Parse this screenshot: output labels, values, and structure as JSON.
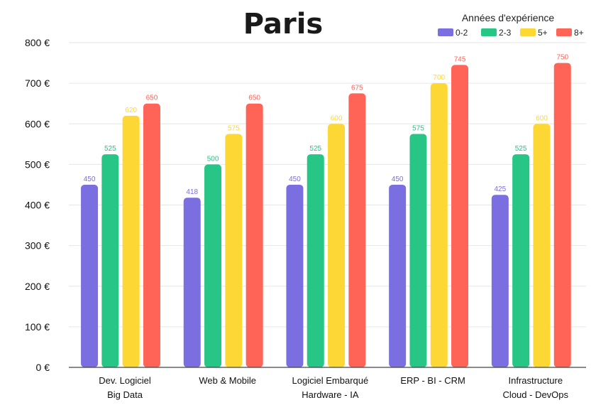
{
  "chart_data": {
    "type": "bar",
    "title": "Paris",
    "legend_title": "Années d'expérience",
    "legend_position": "top-right",
    "grid": true,
    "y_tick_suffix": " €",
    "ylim": [
      0,
      800
    ],
    "yticks": [
      0,
      100,
      200,
      300,
      400,
      500,
      600,
      700,
      800
    ],
    "categories": [
      [
        "Dev. Logiciel",
        "Big Data"
      ],
      [
        "Web & Mobile"
      ],
      [
        "Logiciel Embarqué",
        "Hardware - IA"
      ],
      [
        "ERP - BI - CRM"
      ],
      [
        "Infrastructure",
        "Cloud - DevOps"
      ]
    ],
    "series": [
      {
        "name": "0-2",
        "color": "#7b6ee0",
        "values": [
          450,
          418,
          450,
          450,
          425
        ]
      },
      {
        "name": "2-3",
        "color": "#27c586",
        "values": [
          525,
          500,
          525,
          575,
          525
        ]
      },
      {
        "name": "5+",
        "color": "#fdd835",
        "values": [
          620,
          575,
          600,
          700,
          600
        ]
      },
      {
        "name": "8+",
        "color": "#ff6456",
        "values": [
          650,
          650,
          675,
          745,
          750
        ]
      }
    ]
  }
}
